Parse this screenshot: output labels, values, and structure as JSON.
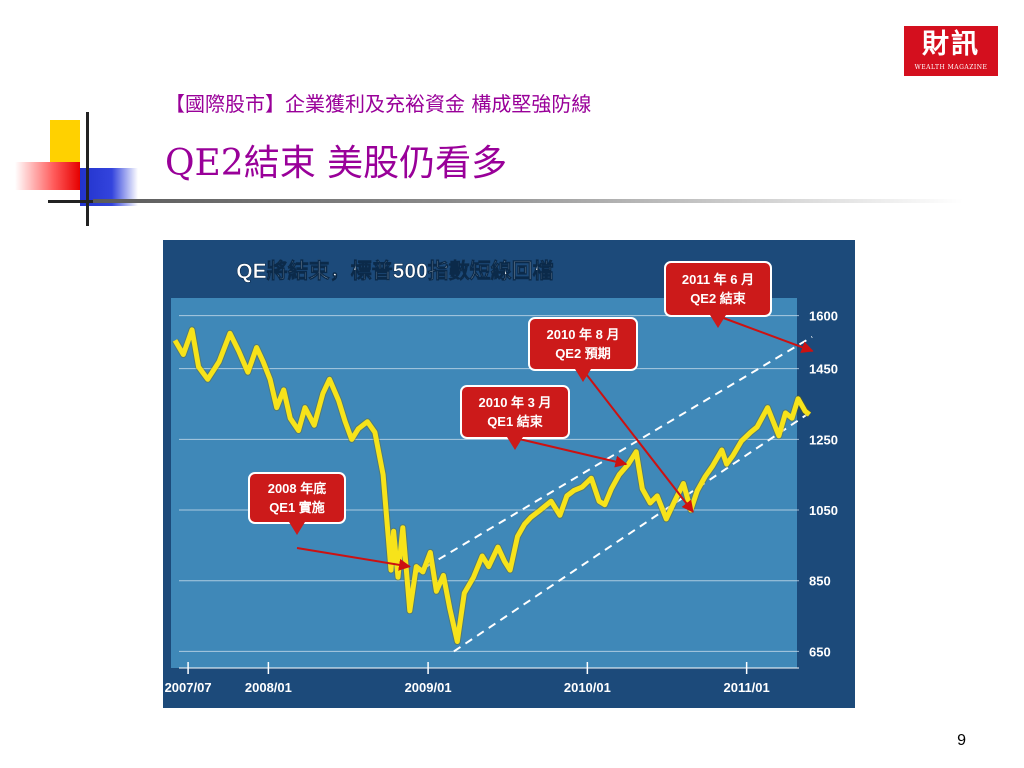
{
  "slide": {
    "subtitle": "【國際股市】企業獲利及充裕資金  構成堅強防線",
    "title": "QE2結束  美股仍看多",
    "page_number": "9"
  },
  "logo": {
    "main": "財訊",
    "sub": "WEALTH MAGAZINE"
  },
  "colors": {
    "title": "#990099",
    "chart_bg": "#3f88b8",
    "chart_frame": "#1c4a7a",
    "line": "#f7e31a",
    "callout_fill": "#cc1a1a",
    "arrow": "#cc1111",
    "logo": "#d40f1e"
  },
  "chart_data": {
    "type": "line",
    "title": "QE將結束，標普500指數短線回檔",
    "xlabel": "",
    "ylabel": "",
    "x_ticks": [
      "2007/07",
      "2008/01",
      "2009/01",
      "2010/01",
      "2011/01"
    ],
    "y_ticks": [
      650,
      850,
      1050,
      1250,
      1450,
      1600
    ],
    "ylim": [
      620,
      1650
    ],
    "xlim": [
      "2007-06",
      "2011-05"
    ],
    "grid": true,
    "y_axis_side": "right",
    "series": [
      {
        "values": [
          [
            "2007-06-01",
            1530
          ],
          [
            "2007-06-20",
            1490
          ],
          [
            "2007-07-10",
            1560
          ],
          [
            "2007-07-25",
            1455
          ],
          [
            "2007-08-15",
            1420
          ],
          [
            "2007-09-10",
            1470
          ],
          [
            "2007-10-05",
            1550
          ],
          [
            "2007-10-25",
            1500
          ],
          [
            "2007-11-15",
            1440
          ],
          [
            "2007-12-05",
            1510
          ],
          [
            "2007-12-20",
            1470
          ],
          [
            "2008-01-05",
            1420
          ],
          [
            "2008-01-20",
            1340
          ],
          [
            "2008-02-05",
            1390
          ],
          [
            "2008-02-20",
            1310
          ],
          [
            "2008-03-10",
            1275
          ],
          [
            "2008-03-25",
            1340
          ],
          [
            "2008-04-15",
            1290
          ],
          [
            "2008-05-05",
            1380
          ],
          [
            "2008-05-20",
            1420
          ],
          [
            "2008-06-10",
            1360
          ],
          [
            "2008-06-25",
            1300
          ],
          [
            "2008-07-10",
            1250
          ],
          [
            "2008-07-25",
            1280
          ],
          [
            "2008-08-15",
            1300
          ],
          [
            "2008-09-01",
            1270
          ],
          [
            "2008-09-20",
            1150
          ],
          [
            "2008-10-08",
            880
          ],
          [
            "2008-10-14",
            990
          ],
          [
            "2008-10-24",
            860
          ],
          [
            "2008-11-04",
            1000
          ],
          [
            "2008-11-20",
            765
          ],
          [
            "2008-12-05",
            890
          ],
          [
            "2008-12-20",
            875
          ],
          [
            "2009-01-06",
            930
          ],
          [
            "2009-01-20",
            820
          ],
          [
            "2009-02-05",
            865
          ],
          [
            "2009-02-20",
            770
          ],
          [
            "2009-03-09",
            678
          ],
          [
            "2009-03-25",
            815
          ],
          [
            "2009-04-15",
            860
          ],
          [
            "2009-05-05",
            920
          ],
          [
            "2009-05-20",
            890
          ],
          [
            "2009-06-10",
            945
          ],
          [
            "2009-06-25",
            905
          ],
          [
            "2009-07-08",
            880
          ],
          [
            "2009-07-25",
            975
          ],
          [
            "2009-08-10",
            1010
          ],
          [
            "2009-08-25",
            1030
          ],
          [
            "2009-09-10",
            1045
          ],
          [
            "2009-09-25",
            1060
          ],
          [
            "2009-10-10",
            1075
          ],
          [
            "2009-10-30",
            1035
          ],
          [
            "2009-11-15",
            1090
          ],
          [
            "2009-12-01",
            1105
          ],
          [
            "2009-12-20",
            1115
          ],
          [
            "2010-01-10",
            1140
          ],
          [
            "2010-01-28",
            1075
          ],
          [
            "2010-02-10",
            1065
          ],
          [
            "2010-02-25",
            1110
          ],
          [
            "2010-03-15",
            1150
          ],
          [
            "2010-04-05",
            1180
          ],
          [
            "2010-04-23",
            1215
          ],
          [
            "2010-05-07",
            1110
          ],
          [
            "2010-05-25",
            1070
          ],
          [
            "2010-06-10",
            1090
          ],
          [
            "2010-07-01",
            1025
          ],
          [
            "2010-07-20",
            1075
          ],
          [
            "2010-08-09",
            1125
          ],
          [
            "2010-08-26",
            1050
          ],
          [
            "2010-09-10",
            1105
          ],
          [
            "2010-09-28",
            1145
          ],
          [
            "2010-10-15",
            1175
          ],
          [
            "2010-11-05",
            1220
          ],
          [
            "2010-11-16",
            1180
          ],
          [
            "2010-12-01",
            1205
          ],
          [
            "2010-12-20",
            1245
          ],
          [
            "2011-01-10",
            1270
          ],
          [
            "2011-01-25",
            1285
          ],
          [
            "2011-02-18",
            1340
          ],
          [
            "2011-03-16",
            1260
          ],
          [
            "2011-03-31",
            1325
          ],
          [
            "2011-04-15",
            1310
          ],
          [
            "2011-04-29",
            1365
          ],
          [
            "2011-05-15",
            1330
          ],
          [
            "2011-05-25",
            1320
          ]
        ]
      }
    ],
    "channel": {
      "upper": [
        [
          "2008-12-01",
          870
        ],
        [
          "2011-05-31",
          1540
        ]
      ],
      "lower": [
        [
          "2009-03-01",
          650
        ],
        [
          "2011-05-31",
          1330
        ]
      ]
    },
    "annotations": [
      {
        "lines": [
          "2008 年底",
          "QE1 實施"
        ],
        "target": [
          "2008-11-20",
          890
        ]
      },
      {
        "lines": [
          "2010 年 3 月",
          "QE1 結束"
        ],
        "target": [
          "2010-03-31",
          1180
        ]
      },
      {
        "lines": [
          "2010 年 8 月",
          "QE2 預期"
        ],
        "target": [
          "2010-08-31",
          1045
        ]
      },
      {
        "lines": [
          "2011 年 6 月",
          "QE2 結束"
        ],
        "target": [
          "2011-06-01",
          1500
        ]
      }
    ]
  }
}
